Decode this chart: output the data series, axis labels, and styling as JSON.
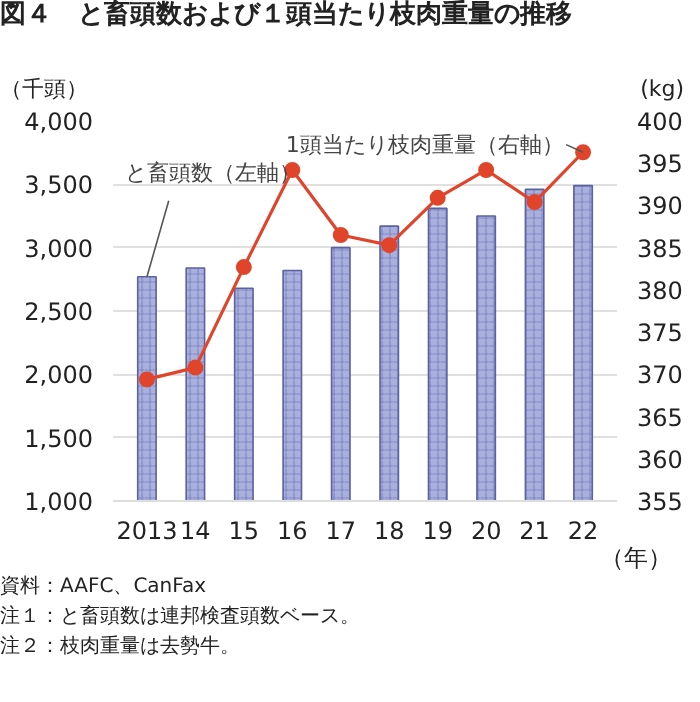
{
  "chart_data": {
    "type": "bar",
    "title": "図４　と畜頭数および１頭当たり枝肉重量の推移",
    "ylabel": "（千頭）",
    "y2label": "(kg)",
    "xlabel": "（年）",
    "categories": [
      "2013",
      "14",
      "15",
      "16",
      "17",
      "18",
      "19",
      "20",
      "21",
      "22"
    ],
    "series": [
      {
        "name": "と畜頭数（左軸）",
        "color": "#a9b0dc",
        "values": [
          2770,
          2840,
          2680,
          2820,
          3000,
          3170,
          3310,
          3250,
          3460,
          3490
        ]
      },
      {
        "name": "1頭当たり枝肉重量（右軸）",
        "type": "line",
        "axis": "y2",
        "color": "#e0452b",
        "values": [
          369.4,
          370.8,
          382.7,
          394.2,
          386.5,
          385.3,
          390.9,
          394.2,
          390.4,
          396.3
        ]
      }
    ],
    "ylim": [
      1000,
      4000
    ],
    "yticks": [
      {
        "value": 1000,
        "label": "1,000"
      },
      {
        "value": 1500,
        "label": "1,500"
      },
      {
        "value": 2000,
        "label": "2,000"
      },
      {
        "value": 2500,
        "label": "2,500"
      },
      {
        "value": 3000,
        "label": "3,000"
      },
      {
        "value": 3500,
        "label": "3,500"
      },
      {
        "value": 4000,
        "label": "4,000"
      }
    ],
    "y2lim": [
      355,
      400
    ],
    "y2ticks": [
      355,
      360,
      365,
      370,
      375,
      380,
      385,
      390,
      395,
      400
    ],
    "grid": "y",
    "marker": "circle",
    "line_style": "solid",
    "annotations": [
      "資料：AAFC、CanFax",
      "注１：と畜頭数は連邦検査頭数ベース。",
      "注２：枝肉重量は去勢牛。"
    ]
  }
}
